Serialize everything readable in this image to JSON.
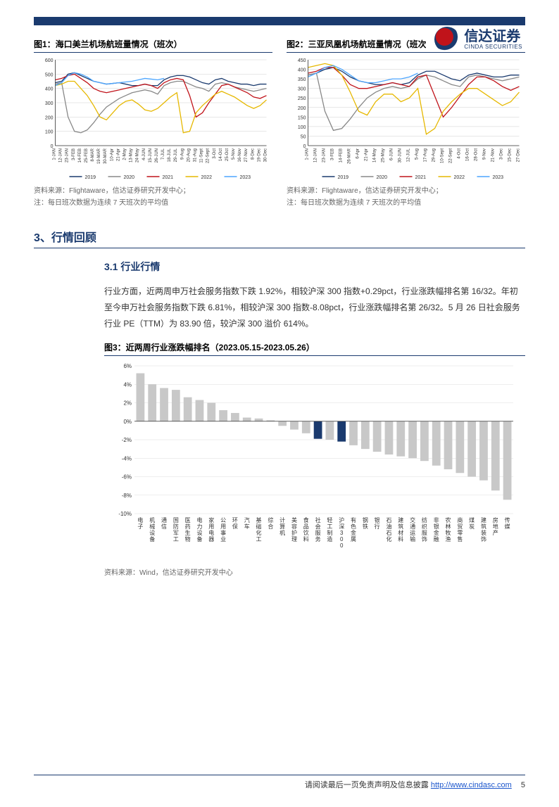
{
  "brand": {
    "cn": "信达证券",
    "en": "CINDA SECURITIES"
  },
  "chart1": {
    "title": "图1：海口美兰机场航班量情况（班次）",
    "source": "资料来源：Flightaware，信达证券研究开发中心；",
    "note": "注：每日班次数据为连续 7 天班次的平均值",
    "ylim": [
      0,
      600
    ],
    "ytick_step": 100,
    "x_labels": [
      "1-JAN",
      "12-JAN",
      "23-JAN",
      "3-FEB",
      "14-FEB",
      "25-FEB",
      "8-MAR",
      "19-MAR",
      "30-MAR",
      "10-Apr",
      "21-Apr",
      "2-May",
      "13-May",
      "24-May",
      "4-JUN",
      "15-JUN",
      "26-JUN",
      "7-JUL",
      "18-JUL",
      "29-JUL",
      "9-Aug",
      "20-Aug",
      "31-Aug",
      "11-Sept",
      "22-Sept",
      "3-Oct",
      "14-Oct",
      "25-Oct",
      "5-Nov",
      "16-Nov",
      "27-Nov",
      "8-Dec",
      "19-Dec",
      "30-Dec"
    ],
    "legend": [
      {
        "label": "2019",
        "color": "#1a3a6e"
      },
      {
        "label": "2020",
        "color": "#888888"
      },
      {
        "label": "2021",
        "color": "#c0131a"
      },
      {
        "label": "2022",
        "color": "#e6b800"
      },
      {
        "label": "2023",
        "color": "#4da6ff"
      }
    ],
    "series": {
      "2019": [
        440,
        450,
        500,
        510,
        490,
        470,
        450,
        440,
        430,
        435,
        440,
        430,
        420,
        420,
        430,
        420,
        420,
        460,
        480,
        490,
        490,
        480,
        460,
        440,
        430,
        460,
        470,
        450,
        440,
        430,
        430,
        420,
        430,
        430
      ],
      "2020": [
        430,
        440,
        200,
        100,
        90,
        110,
        160,
        220,
        270,
        300,
        330,
        350,
        370,
        380,
        390,
        380,
        360,
        420,
        440,
        450,
        450,
        430,
        410,
        400,
        380,
        430,
        440,
        430,
        410,
        400,
        390,
        380,
        390,
        400
      ],
      "2021": [
        460,
        470,
        490,
        500,
        470,
        440,
        400,
        380,
        370,
        380,
        390,
        400,
        410,
        420,
        430,
        420,
        400,
        440,
        460,
        470,
        460,
        350,
        200,
        230,
        300,
        360,
        420,
        430,
        410,
        390,
        370,
        340,
        330,
        350
      ],
      "2022": [
        420,
        430,
        450,
        450,
        400,
        350,
        280,
        200,
        180,
        230,
        280,
        310,
        320,
        290,
        250,
        240,
        260,
        300,
        340,
        370,
        90,
        100,
        230,
        280,
        320,
        360,
        380,
        360,
        340,
        310,
        280,
        260,
        280,
        320
      ],
      "2023": [
        420,
        440,
        490,
        510,
        500,
        480,
        450,
        440,
        430,
        435,
        440,
        445,
        450,
        460,
        470,
        465,
        460,
        470
      ]
    },
    "grid_color": "#cfcfcf",
    "background": "#ffffff",
    "label_fontsize": 7
  },
  "chart2": {
    "title": "图2：三亚凤凰机场航班量情况（班次）",
    "source": "资料来源：Flightaware，信达证券研究开发中心；",
    "note": "注：每日班次数据为连续 7 天班次的平均值",
    "ylim": [
      0,
      450
    ],
    "ytick_step": 50,
    "x_labels": [
      "1-JAN",
      "12-JAN",
      "23-JAN",
      "3-FEB",
      "14-FEB",
      "26-MAR",
      "6-Apr",
      "21-Apr",
      "14-May",
      "25-May",
      "6-JUN",
      "30-JUN",
      "12-JUL",
      "5-Aug",
      "17-Aug",
      "29-Aug",
      "10-Sept",
      "22-Sept",
      "4-Oct",
      "16-Oct",
      "28-Oct",
      "9-Nov",
      "21-Nov",
      "3-Dec",
      "15-Dec",
      "27-Dec"
    ],
    "legend": [
      {
        "label": "2019",
        "color": "#1a3a6e"
      },
      {
        "label": "2020",
        "color": "#888888"
      },
      {
        "label": "2021",
        "color": "#c0131a"
      },
      {
        "label": "2022",
        "color": "#e6b800"
      },
      {
        "label": "2023",
        "color": "#4da6ff"
      }
    ],
    "series": {
      "2019": [
        370,
        380,
        400,
        410,
        390,
        360,
        340,
        330,
        320,
        320,
        330,
        320,
        330,
        370,
        390,
        390,
        370,
        350,
        340,
        370,
        380,
        370,
        360,
        360,
        370,
        370
      ],
      "2020": [
        370,
        380,
        180,
        80,
        90,
        140,
        200,
        250,
        280,
        300,
        310,
        300,
        310,
        350,
        370,
        360,
        340,
        320,
        310,
        360,
        370,
        360,
        350,
        340,
        350,
        360
      ],
      "2021": [
        380,
        390,
        410,
        410,
        370,
        320,
        300,
        300,
        310,
        320,
        330,
        320,
        310,
        360,
        370,
        260,
        150,
        200,
        260,
        320,
        360,
        360,
        340,
        310,
        290,
        310
      ],
      "2022": [
        410,
        420,
        430,
        420,
        370,
        280,
        180,
        160,
        230,
        270,
        270,
        230,
        250,
        300,
        60,
        90,
        180,
        230,
        270,
        300,
        300,
        270,
        240,
        210,
        230,
        280
      ],
      "2023": [
        360,
        380,
        410,
        420,
        400,
        370,
        340,
        330,
        330,
        340,
        350,
        350,
        360,
        380
      ]
    },
    "grid_color": "#cfcfcf",
    "background": "#ffffff",
    "label_fontsize": 7
  },
  "section": {
    "h1": "3、行情回顾",
    "h2": "3.1 行业行情"
  },
  "paragraph": "行业方面，近两周申万社会服务指数下跌 1.92%，相较沪深 300 指数+0.29pct，行业涨跌幅排名第 16/32。年初至今申万社会服务指数下跌 6.81%，相较沪深 300 指数-8.08pct，行业涨跌幅排名第 26/32。5 月 26 日社会服务行业 PE（TTM）为 83.90 倍，较沪深 300 溢价 614%。",
  "chart3": {
    "title": "图3：近两周行业涨跌幅排名（2023.05.15-2023.05.26）",
    "source": "资料来源：Wind，信达证券研究开发中心",
    "ylim": [
      -10,
      6
    ],
    "yticks": [
      -10,
      -8,
      -6,
      -4,
      -2,
      0,
      2,
      4,
      6
    ],
    "bar_color": "#c8c8c8",
    "highlight_color": "#1a3a6e",
    "grid_color": "#dddddd",
    "label_fontsize": 8,
    "highlight_indices": [
      15,
      17
    ],
    "categories": [
      "电子",
      "机械设备",
      "通信",
      "国防军工",
      "医药生物",
      "电力设备",
      "家用电器",
      "公用事业",
      "环保",
      "汽车",
      "基础化工",
      "综合",
      "计算机",
      "美容护理",
      "食品饮料",
      "社会服务",
      "轻工制造",
      "沪深300",
      "有色金属",
      "钢铁",
      "银行",
      "石油石化",
      "建筑材料",
      "交通运输",
      "纺织服饰",
      "非银金融",
      "农林牧渔",
      "商贸零售",
      "煤炭",
      "建筑装饰",
      "房地产",
      "传媒"
    ],
    "values": [
      5.2,
      4.0,
      3.6,
      3.4,
      2.6,
      2.3,
      2.0,
      1.2,
      0.9,
      0.4,
      0.3,
      0.1,
      -0.5,
      -0.9,
      -1.3,
      -1.9,
      -2.0,
      -2.2,
      -2.6,
      -3.0,
      -3.3,
      -3.6,
      -3.8,
      -4.0,
      -4.3,
      -4.8,
      -5.2,
      -5.6,
      -6.0,
      -6.4,
      -7.5,
      -8.5
    ]
  },
  "footer": {
    "text": "请阅读最后一页免责声明及信息披露",
    "url": "http://www.cindasc.com",
    "page": "5"
  }
}
